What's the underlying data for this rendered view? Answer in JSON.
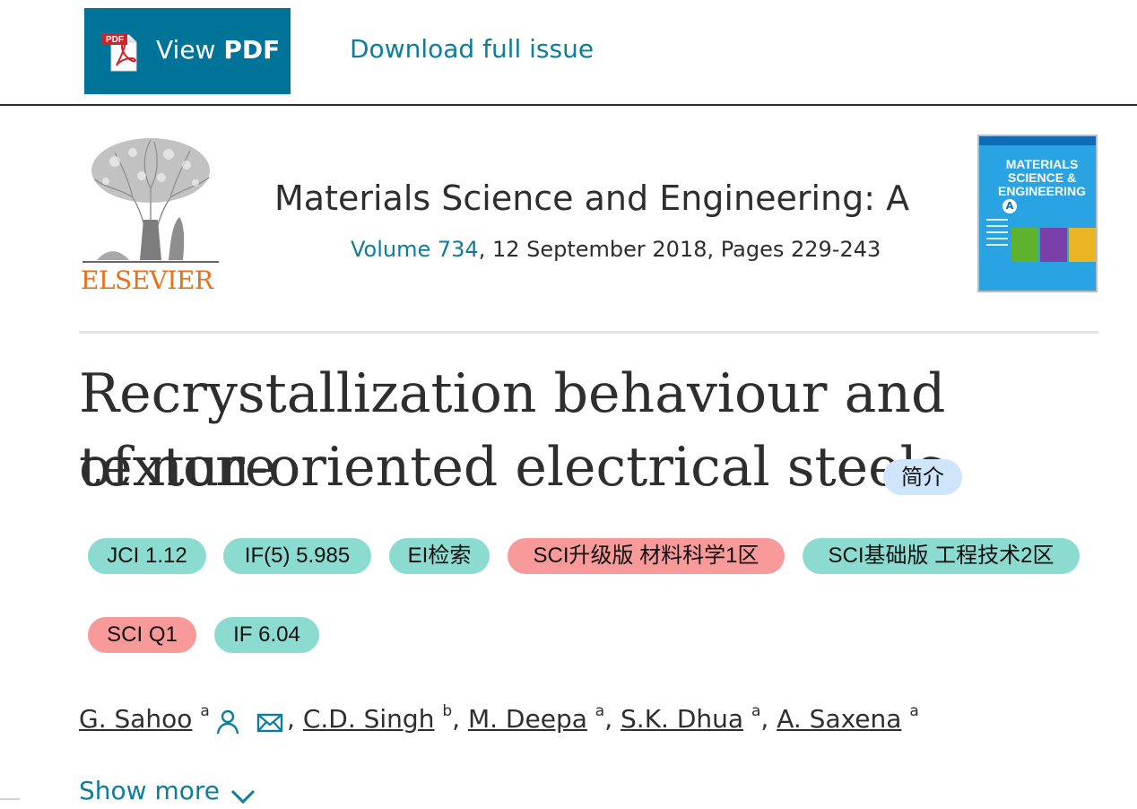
{
  "toolbar": {
    "view_pdf_prefix": "View",
    "view_pdf_bold": "PDF",
    "pdf_icon_text": "PDF",
    "download_label": "Download full issue"
  },
  "header": {
    "publisher": "ELSEVIER",
    "journal_title": "Materials Science and Engineering: A",
    "volume_link": "Volume 734",
    "issue_rest": ", 12 September 2018, Pages 229-243",
    "cover_title": "MATERIALS SCIENCE & ENGINEERING",
    "cover_letter": "A"
  },
  "article": {
    "title_line1": "Recrystallization behaviour and texture",
    "title_line2": "of non-oriented electrical steels",
    "summary_badge": "简介"
  },
  "tags": [
    {
      "label": "JCI 1.12",
      "color": "#8cdbd1"
    },
    {
      "label": "IF(5) 5.985",
      "color": "#8cdbd1"
    },
    {
      "label": "EI检索",
      "color": "#8cdbd1"
    },
    {
      "label": "SCI升级版 材料科学1区",
      "color": "#f89a9a"
    },
    {
      "label": "SCI基础版 工程技术2区",
      "color": "#8cdbd1"
    },
    {
      "label": "SCI Q1",
      "color": "#f89a9a"
    },
    {
      "label": "IF 6.04",
      "color": "#8cdbd1"
    }
  ],
  "authors": [
    {
      "name": "G. Sahoo",
      "aff": "a"
    },
    {
      "name": "C.D. Singh",
      "aff": "b"
    },
    {
      "name": "M. Deepa",
      "aff": "a"
    },
    {
      "name": "S.K. Dhua",
      "aff": "a"
    },
    {
      "name": "A. Saxena",
      "aff": "a"
    }
  ],
  "separator": ",",
  "show_more": "Show more",
  "colors": {
    "accent": "#007398",
    "link": "#0c7d9d",
    "publisher_orange": "#e9711c"
  }
}
